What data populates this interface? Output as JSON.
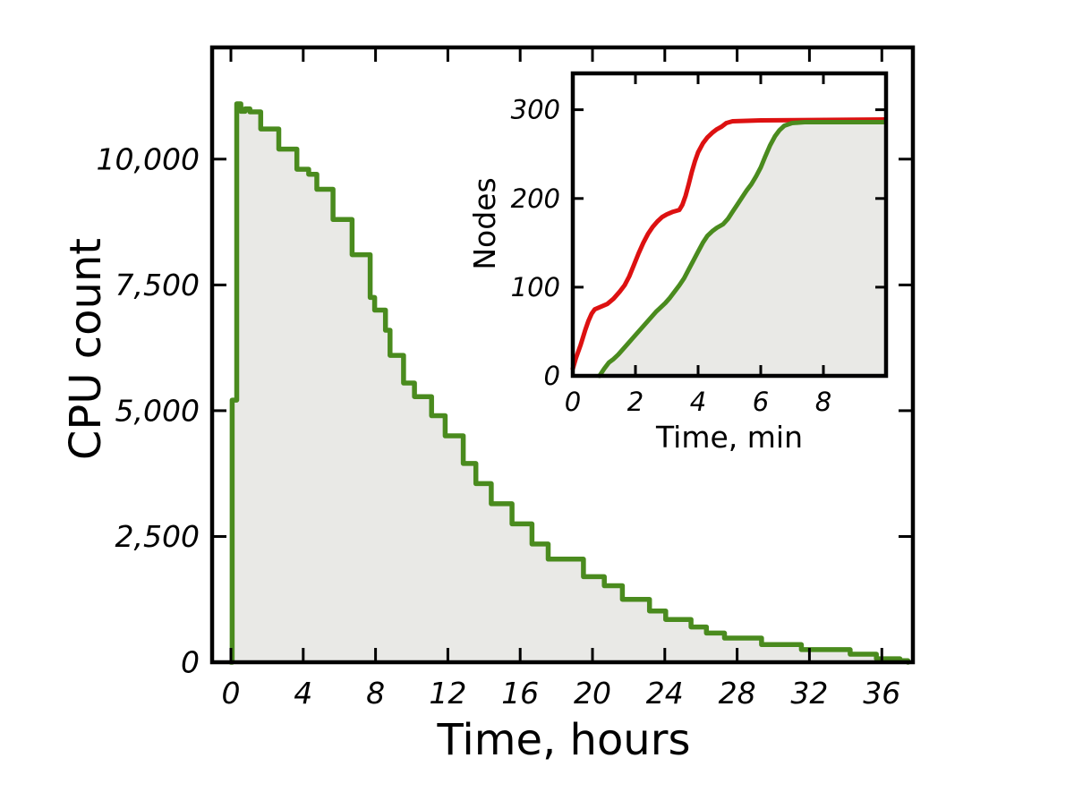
{
  "figure": {
    "background": "#ffffff",
    "axis_color": "#000000",
    "text_color": "#000000"
  },
  "chart_data": [
    {
      "id": "main",
      "type": "area",
      "step_style": "post",
      "title": "",
      "xlabel": "Time, hours",
      "ylabel": "CPU count",
      "xlim": [
        -1.04,
        37.72
      ],
      "ylim": [
        0,
        12220
      ],
      "grid": false,
      "legend": "none",
      "box": true,
      "ticks_mirrored": true,
      "xticks": [
        0,
        4,
        8,
        12,
        16,
        20,
        24,
        28,
        32,
        36
      ],
      "xtick_labels": [
        "0",
        "4",
        "8",
        "12",
        "16",
        "20",
        "24",
        "28",
        "32",
        "36"
      ],
      "yticks": [
        0,
        2500,
        5000,
        7500,
        10000
      ],
      "ytick_labels": [
        "0",
        "2,500",
        "5,000",
        "7,500",
        "10,000"
      ],
      "series": [
        {
          "name": "cpu-count-steps",
          "color": "#4a8b1e",
          "fill": "#e9e9e6",
          "step": true,
          "points": [
            [
              0.0,
              0
            ],
            [
              0.07,
              5210
            ],
            [
              0.32,
              11100
            ],
            [
              0.55,
              10950
            ],
            [
              0.78,
              11000
            ],
            [
              1.05,
              10940
            ],
            [
              1.65,
              10600
            ],
            [
              2.65,
              10200
            ],
            [
              3.65,
              9800
            ],
            [
              4.3,
              9700
            ],
            [
              4.75,
              9400
            ],
            [
              5.65,
              8800
            ],
            [
              6.7,
              8100
            ],
            [
              7.7,
              7250
            ],
            [
              7.95,
              7000
            ],
            [
              8.55,
              6600
            ],
            [
              8.8,
              6100
            ],
            [
              9.55,
              5550
            ],
            [
              10.15,
              5280
            ],
            [
              11.1,
              4900
            ],
            [
              11.85,
              4500
            ],
            [
              12.85,
              3950
            ],
            [
              13.55,
              3550
            ],
            [
              14.4,
              3150
            ],
            [
              15.55,
              2750
            ],
            [
              16.65,
              2350
            ],
            [
              17.55,
              2050
            ],
            [
              19.5,
              1700
            ],
            [
              20.65,
              1520
            ],
            [
              21.65,
              1250
            ],
            [
              23.15,
              1020
            ],
            [
              24.05,
              850
            ],
            [
              25.45,
              700
            ],
            [
              26.3,
              580
            ],
            [
              27.3,
              480
            ],
            [
              29.35,
              350
            ],
            [
              31.55,
              250
            ],
            [
              34.25,
              160
            ],
            [
              35.7,
              70
            ],
            [
              37.0,
              30
            ],
            [
              37.45,
              0
            ]
          ]
        }
      ]
    },
    {
      "id": "inset",
      "type": "line",
      "title": "",
      "xlabel": "Time, min",
      "ylabel": "Nodes",
      "xlim": [
        0,
        10
      ],
      "ylim": [
        0,
        341
      ],
      "grid": false,
      "legend": "none",
      "box": true,
      "ticks_mirrored": true,
      "xticks": [
        0,
        2,
        4,
        6,
        8
      ],
      "xtick_labels": [
        "0",
        "2",
        "4",
        "6",
        "8"
      ],
      "yticks": [
        0,
        100,
        200,
        300
      ],
      "ytick_labels": [
        "0",
        "100",
        "200",
        "300"
      ],
      "series": [
        {
          "name": "nodes-requested-red",
          "color": "#dd1111",
          "fill": null,
          "step": false,
          "points": [
            [
              0.0,
              8
            ],
            [
              0.1,
              20
            ],
            [
              0.25,
              35
            ],
            [
              0.4,
              52
            ],
            [
              0.5,
              62
            ],
            [
              0.6,
              70
            ],
            [
              0.7,
              75
            ],
            [
              0.9,
              78
            ],
            [
              1.1,
              81
            ],
            [
              1.3,
              87
            ],
            [
              1.5,
              95
            ],
            [
              1.65,
              102
            ],
            [
              1.8,
              112
            ],
            [
              1.95,
              125
            ],
            [
              2.1,
              138
            ],
            [
              2.25,
              150
            ],
            [
              2.4,
              160
            ],
            [
              2.55,
              168
            ],
            [
              2.7,
              174
            ],
            [
              2.85,
              179
            ],
            [
              3.0,
              182
            ],
            [
              3.2,
              185
            ],
            [
              3.4,
              187
            ],
            [
              3.5,
              193
            ],
            [
              3.6,
              203
            ],
            [
              3.7,
              216
            ],
            [
              3.8,
              230
            ],
            [
              3.9,
              242
            ],
            [
              4.0,
              252
            ],
            [
              4.15,
              262
            ],
            [
              4.3,
              269
            ],
            [
              4.45,
              274
            ],
            [
              4.6,
              278
            ],
            [
              4.75,
              281
            ],
            [
              4.9,
              285
            ],
            [
              5.1,
              287
            ],
            [
              6.0,
              288
            ],
            [
              9.95,
              289
            ]
          ]
        },
        {
          "name": "nodes-ready-green",
          "color": "#4a8b1e",
          "fill": "#e9e9e6",
          "step": false,
          "points": [
            [
              0.85,
              0
            ],
            [
              1.0,
              8
            ],
            [
              1.15,
              15
            ],
            [
              1.3,
              19
            ],
            [
              1.45,
              24
            ],
            [
              1.6,
              30
            ],
            [
              1.75,
              36
            ],
            [
              1.9,
              42
            ],
            [
              2.05,
              48
            ],
            [
              2.2,
              54
            ],
            [
              2.35,
              60
            ],
            [
              2.5,
              66
            ],
            [
              2.65,
              72
            ],
            [
              2.8,
              77
            ],
            [
              2.95,
              82
            ],
            [
              3.1,
              88
            ],
            [
              3.25,
              95
            ],
            [
              3.4,
              102
            ],
            [
              3.55,
              110
            ],
            [
              3.7,
              120
            ],
            [
              3.85,
              130
            ],
            [
              4.0,
              140
            ],
            [
              4.15,
              150
            ],
            [
              4.3,
              158
            ],
            [
              4.45,
              163
            ],
            [
              4.6,
              167
            ],
            [
              4.8,
              171
            ],
            [
              4.95,
              177
            ],
            [
              5.1,
              185
            ],
            [
              5.25,
              193
            ],
            [
              5.4,
              201
            ],
            [
              5.55,
              209
            ],
            [
              5.7,
              216
            ],
            [
              5.85,
              225
            ],
            [
              6.0,
              235
            ],
            [
              6.15,
              248
            ],
            [
              6.3,
              260
            ],
            [
              6.45,
              270
            ],
            [
              6.6,
              277
            ],
            [
              6.75,
              282
            ],
            [
              7.0,
              285
            ],
            [
              7.4,
              286
            ],
            [
              9.95,
              286
            ]
          ]
        }
      ]
    }
  ]
}
